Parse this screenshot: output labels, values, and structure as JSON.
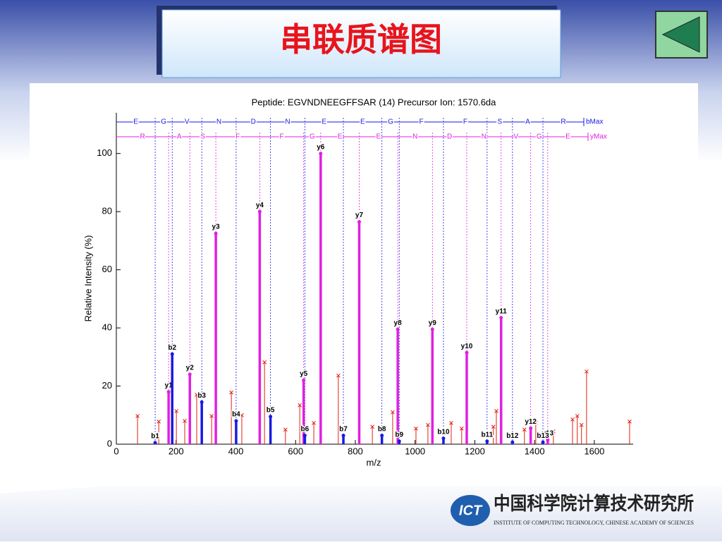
{
  "slide": {
    "title": "串联质谱图"
  },
  "logo": {
    "mark": "ICT",
    "name_cn": "中国科学院计算技术研究所",
    "name_en": "INSTITUTE OF COMPUTING TECHNOLOGY, CHINESE ACADEMY OF SCIENCES"
  },
  "chart_data": {
    "type": "spectrum",
    "title": "Peptide: EGVNDNEEGFFSAR (14)  Precursor Ion: 1570.6da",
    "x_label": "m/z",
    "y_label": "Relative Intensity (%)",
    "xlim": [
      0,
      1730
    ],
    "ylim": [
      0,
      114
    ],
    "xticks": [
      0,
      200,
      400,
      600,
      800,
      1000,
      1200,
      1400,
      1600
    ],
    "yticks": [
      0,
      20,
      40,
      60,
      80,
      100
    ],
    "grid": false,
    "series": [
      {
        "name": "b",
        "color": "#1a1ae0",
        "marker": "dot",
        "x": [
          130,
          187,
          286,
          401,
          516,
          631,
          760,
          889,
          947,
          1095,
          1241,
          1326,
          1428
        ],
        "values": [
          0.5,
          31,
          14.5,
          8,
          9.5,
          3,
          3,
          3,
          1,
          2,
          1,
          0.7,
          0.7
        ],
        "labels": [
          "b1",
          "b2",
          "b3",
          "b4",
          "b5",
          "b6",
          "b7",
          "b8",
          "b9",
          "b10",
          "b11",
          "b12",
          "b13"
        ]
      },
      {
        "name": "y",
        "color": "#e020e0",
        "marker": "dot",
        "x": [
          175,
          246,
          333,
          480,
          627,
          684,
          813,
          942,
          1058,
          1173,
          1288,
          1387,
          1444
        ],
        "values": [
          18,
          24,
          72.5,
          80,
          22,
          100,
          76.5,
          39.5,
          39.5,
          31.5,
          43.5,
          5.5,
          1.5
        ],
        "labels": [
          "y1",
          "y2",
          "y3",
          "y4",
          "y5",
          "y6",
          "y7",
          "y8",
          "y9",
          "y10",
          "y11",
          "y12",
          "y13"
        ]
      },
      {
        "name": "noise",
        "color": "#e02010",
        "marker": "x",
        "x": [
          71,
          142,
          201,
          229,
          269,
          319,
          385,
          420,
          496,
          566,
          614,
          661,
          743,
          857,
          925,
          1003,
          1043,
          1121,
          1156,
          1262,
          1272,
          1366,
          1404,
          1463,
          1527,
          1543,
          1557,
          1574,
          1718
        ],
        "values": [
          9.7,
          7.8,
          11.4,
          8,
          17,
          9.7,
          17.8,
          10,
          28.2,
          5,
          13.4,
          7.3,
          23.6,
          6,
          11,
          5.4,
          6.6,
          7.3,
          5.4,
          6,
          11.4,
          5,
          7.3,
          4.4,
          8.5,
          9.7,
          6.6,
          25,
          7.8
        ]
      }
    ],
    "b_ladder": {
      "residues": [
        "E",
        "G",
        "V",
        "N",
        "D",
        "N",
        "E",
        "E",
        "G",
        "F",
        "F",
        "S",
        "A",
        "R"
      ],
      "end_label": "bMax"
    },
    "y_ladder": {
      "residues": [
        "R",
        "A",
        "S",
        "F",
        "F",
        "G",
        "E",
        "E",
        "N",
        "D",
        "N",
        "V",
        "G",
        "E"
      ],
      "end_label": "yMax"
    }
  }
}
